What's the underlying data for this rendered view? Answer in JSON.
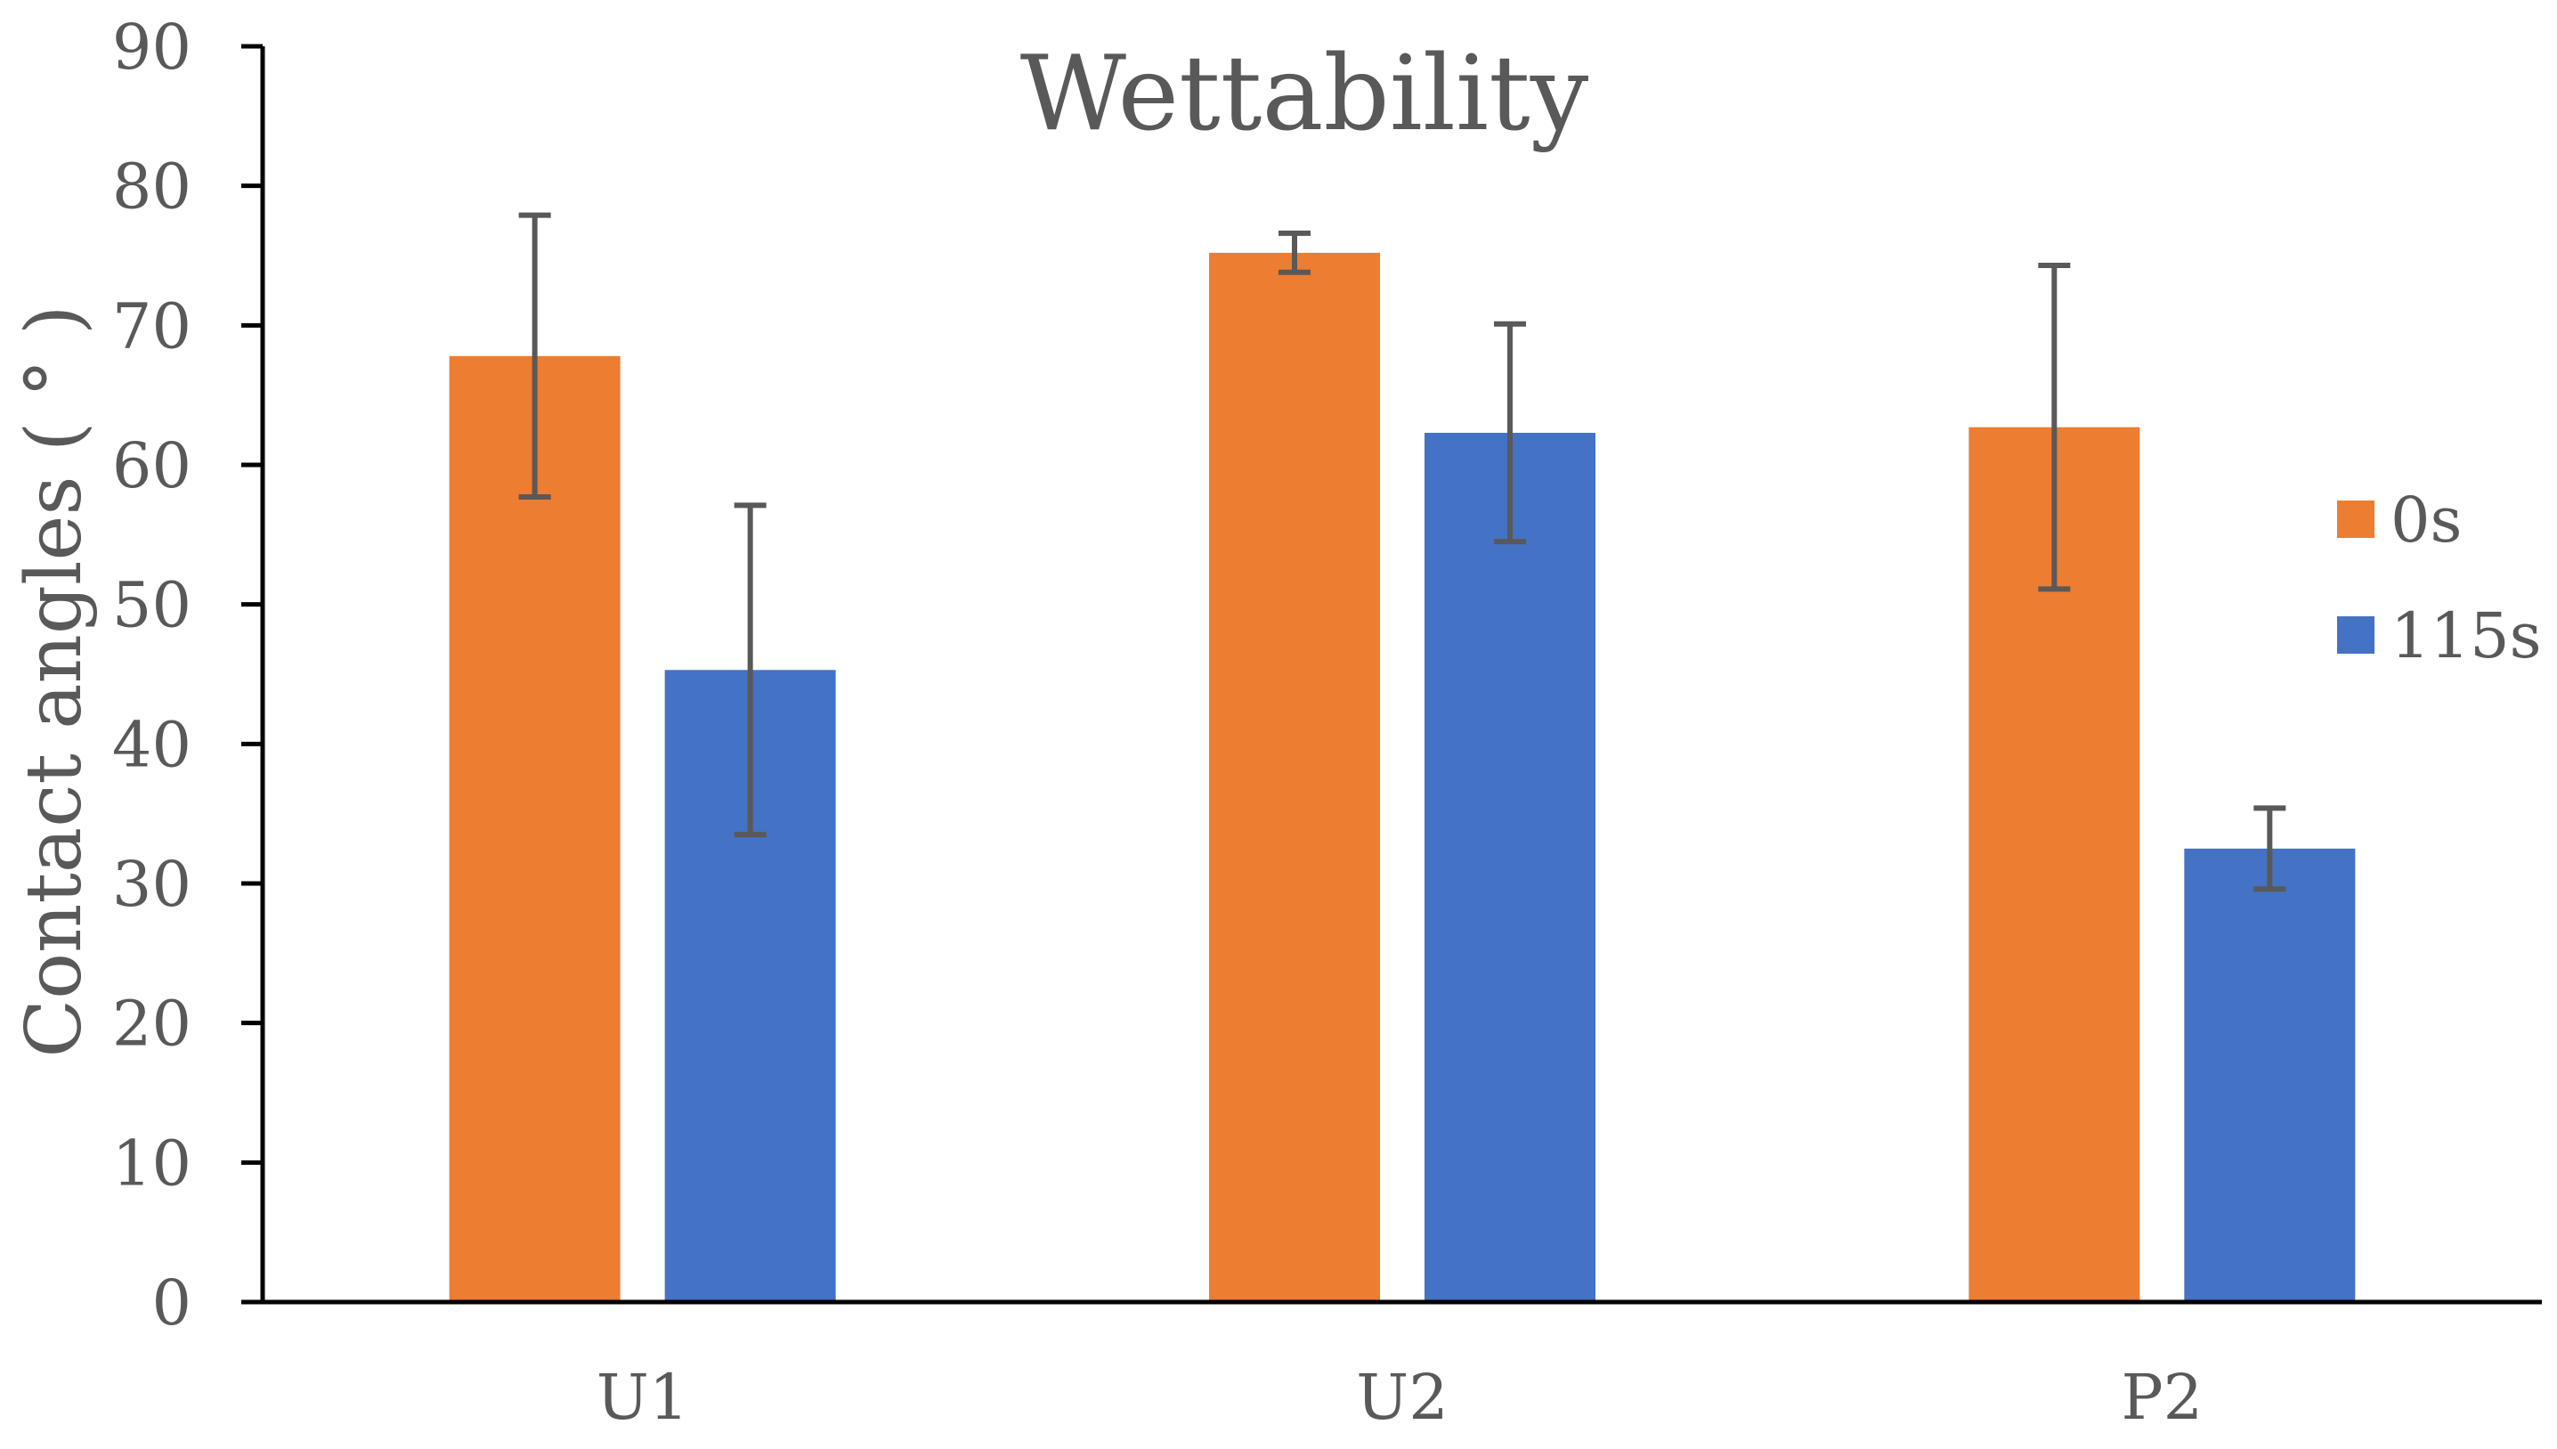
{
  "chart_data": {
    "type": "bar",
    "title": "Wettability",
    "xlabel": "",
    "ylabel": "Contact angles (  °  )",
    "ylim": [
      0,
      90
    ],
    "yticks": [
      0,
      10,
      20,
      30,
      40,
      50,
      60,
      70,
      80,
      90
    ],
    "categories": [
      "U1",
      "U2",
      "P2"
    ],
    "series": [
      {
        "name": "0s",
        "color": "#ED7D31",
        "values": [
          67.8,
          75.2,
          62.7
        ],
        "errors": [
          10.1,
          1.4,
          11.6
        ]
      },
      {
        "name": "115s",
        "color": "#4472C4",
        "values": [
          45.3,
          62.3,
          32.5
        ],
        "errors": [
          11.8,
          7.8,
          2.9
        ]
      }
    ],
    "legend_position": "right",
    "grid": false
  }
}
